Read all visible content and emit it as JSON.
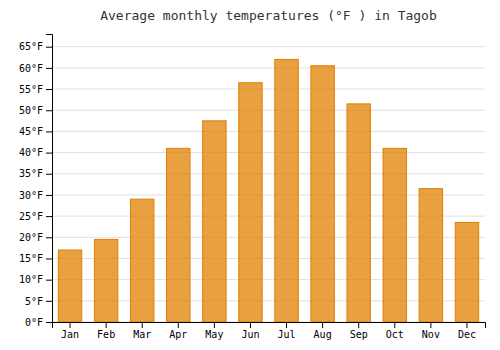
{
  "chart_data": {
    "type": "bar",
    "title": "Average monthly temperatures (°F ) in Tagob",
    "categories": [
      "Jan",
      "Feb",
      "Mar",
      "Apr",
      "May",
      "Jun",
      "Jul",
      "Aug",
      "Sep",
      "Oct",
      "Nov",
      "Dec"
    ],
    "values": [
      17,
      19.5,
      29,
      41,
      47.5,
      56.5,
      62,
      60.5,
      51.5,
      41,
      31.5,
      23.5
    ],
    "color": "#E08000",
    "ylim": [
      0,
      68
    ],
    "yticks": [
      {
        "value": 0,
        "label": "0°F"
      },
      {
        "value": 5,
        "label": "5°F"
      },
      {
        "value": 10,
        "label": "10°F"
      },
      {
        "value": 15,
        "label": "15°F"
      },
      {
        "value": 20,
        "label": "20°F"
      },
      {
        "value": 25,
        "label": "25°F"
      },
      {
        "value": 30,
        "label": "30°F"
      },
      {
        "value": 35,
        "label": "35°F"
      },
      {
        "value": 40,
        "label": "40°F"
      },
      {
        "value": 45,
        "label": "45°F"
      },
      {
        "value": 50,
        "label": "50°F"
      },
      {
        "value": 55,
        "label": "55°F"
      },
      {
        "value": 60,
        "label": "60°F"
      },
      {
        "value": 65,
        "label": "65°F"
      }
    ],
    "grid": true
  }
}
